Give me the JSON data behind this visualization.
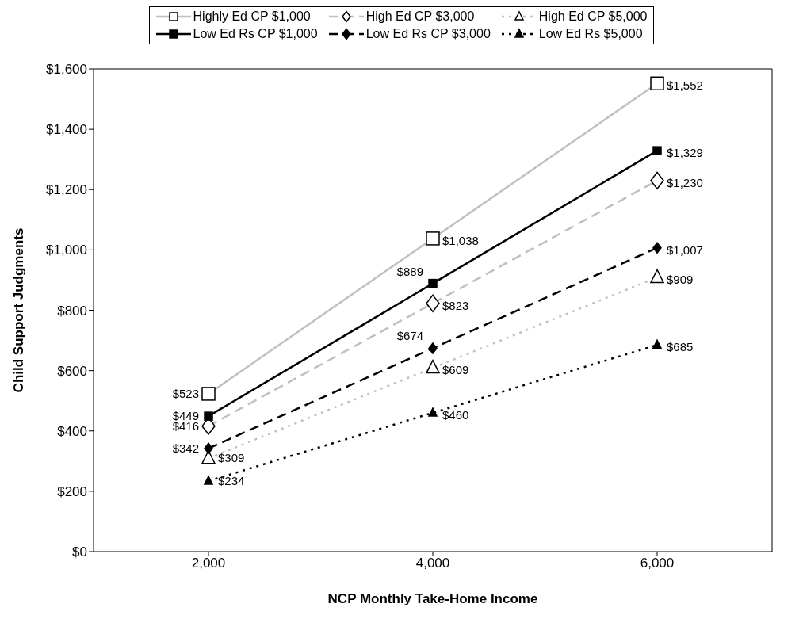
{
  "chart_data": {
    "type": "line",
    "xlabel": "NCP Monthly Take-Home Income",
    "ylabel": "Child Support Judgments",
    "categories": [
      "2,000",
      "4,000",
      "6,000"
    ],
    "ylim": [
      0,
      1600
    ],
    "yticks": [
      {
        "value": 0,
        "label": "$0"
      },
      {
        "value": 200,
        "label": "$200"
      },
      {
        "value": 400,
        "label": "$400"
      },
      {
        "value": 600,
        "label": "$600"
      },
      {
        "value": 800,
        "label": "$800"
      },
      {
        "value": 1000,
        "label": "$1,000"
      },
      {
        "value": 1200,
        "label": "$1,200"
      },
      {
        "value": 1400,
        "label": "$1,400"
      },
      {
        "value": 1600,
        "label": "$1,600"
      }
    ],
    "grid": false,
    "legend": "top",
    "series": [
      {
        "name": "Highly Ed CP $1,000",
        "color": "#c0c0c0",
        "marker": "square",
        "line_style": "solid",
        "values": [
          523,
          1038,
          1552
        ],
        "value_labels": [
          "$523",
          "$1,038",
          "$1,552"
        ]
      },
      {
        "name": "High Ed CP $3,000",
        "color": "#c0c0c0",
        "marker": "diamond",
        "line_style": "dashed",
        "values": [
          416,
          823,
          1230
        ],
        "value_labels": [
          "$416",
          "$823",
          "$1,230"
        ]
      },
      {
        "name": "High Ed CP $5,000",
        "color": "#c0c0c0",
        "marker": "triangle",
        "line_style": "dotted",
        "values": [
          309,
          609,
          909
        ],
        "value_labels": [
          "$309",
          "$609",
          "$909"
        ]
      },
      {
        "name": "Low Ed Rs CP $1,000",
        "color": "#000000",
        "marker": "square",
        "line_style": "solid",
        "values": [
          449,
          889,
          1329
        ],
        "value_labels": [
          "$449",
          "$889",
          "$1,329"
        ]
      },
      {
        "name": "Low Ed Rs CP $3,000",
        "color": "#000000",
        "marker": "diamond",
        "line_style": "dashed",
        "values": [
          342,
          674,
          1007
        ],
        "value_labels": [
          "$342",
          "$674",
          "$1,007"
        ]
      },
      {
        "name": "Low Ed Rs $5,000",
        "color": "#000000",
        "marker": "triangle",
        "line_style": "dotted",
        "values": [
          234,
          460,
          685
        ],
        "value_labels": [
          "$234",
          "$460",
          "$685"
        ]
      }
    ]
  }
}
